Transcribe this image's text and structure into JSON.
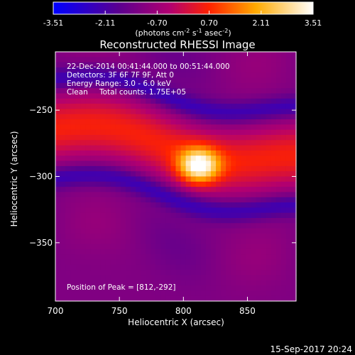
{
  "chart_data": {
    "type": "heatmap",
    "title": "Reconstructed RHESSI Image",
    "xlabel": "Heliocentric X (arcsec)",
    "ylabel": "Heliocentric Y (arcsec)",
    "xlim": [
      700,
      888
    ],
    "ylim": [
      -394,
      -206
    ],
    "x_ticks": [
      700,
      750,
      800,
      850
    ],
    "y_ticks": [
      -250,
      -300,
      -350
    ],
    "colorbar": {
      "ticks": [
        "-3.51",
        "-2.11",
        "-0.70",
        "0.70",
        "2.11",
        "3.51"
      ],
      "range": [
        -3.51,
        3.51
      ],
      "unit_parts": [
        "(photons cm",
        "-2",
        " s",
        "-1",
        " asec",
        "-2",
        ")"
      ]
    },
    "annotations": [
      "22-Dec-2014 00:41:44.000 to 00:51:44.000",
      "Detectors: 3F 6F 7F 9F, Att 0",
      "Energy Range: 3.0 - 6.0 keV",
      "Clean",
      "Total counts: 1.75E+05"
    ],
    "peak_label": "Position of Peak = [812,-292]",
    "peak": [
      812,
      -292
    ],
    "peak_intensity": 3.51,
    "footer_date": "15-Sep-2017 20:24"
  }
}
